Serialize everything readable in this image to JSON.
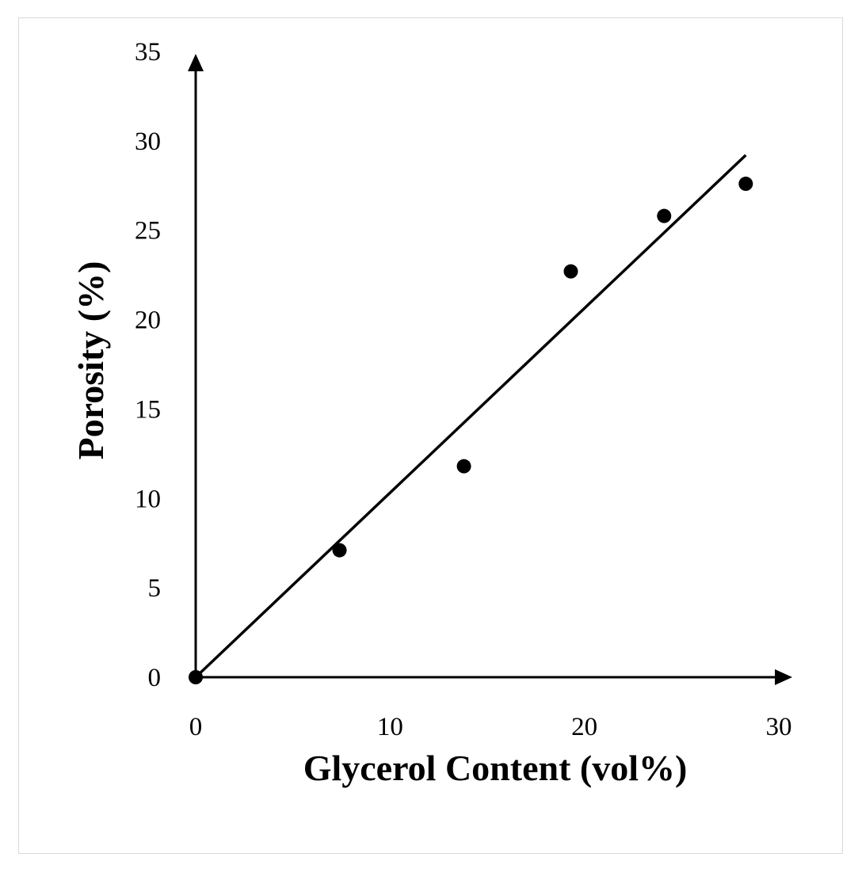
{
  "chart_data": {
    "type": "scatter",
    "xlabel": "Glycerol Content (vol%)",
    "ylabel": "Porosity (%)",
    "xlim": [
      0,
      30
    ],
    "ylim": [
      0,
      35
    ],
    "x_ticks": [
      "0",
      "10",
      "20",
      "30"
    ],
    "y_ticks": [
      "0",
      "5",
      "10",
      "15",
      "20",
      "25",
      "30",
      "35"
    ],
    "grid": false,
    "legend": "none",
    "series": [
      {
        "x": [
          0,
          7.4,
          13.8,
          19.3,
          24.1,
          28.3
        ],
        "y": [
          0,
          7.1,
          11.8,
          22.7,
          25.8,
          27.6
        ]
      }
    ],
    "trendline": {
      "x": [
        0,
        28.3
      ],
      "y": [
        0,
        29.2
      ]
    },
    "colors": {
      "marker": "#000000",
      "line": "#000000",
      "axis": "#000000"
    }
  }
}
